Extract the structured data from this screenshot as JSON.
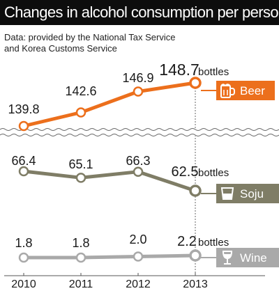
{
  "title": "Changes in alcohol consumption per person",
  "source_lines": [
    "Data: provided by the National Tax Service",
    "and Korea Customs Service"
  ],
  "unit_label": "bottles",
  "colors": {
    "beer": "#ec6f1c",
    "soju": "#7f7d66",
    "wine": "#a9a9a9",
    "axis": "#555555",
    "guide": "#666666",
    "title_bg": "#0d0d0d"
  },
  "chart_data": {
    "type": "line",
    "title": "Changes in alcohol consumption per person",
    "xlabel": "",
    "ylabel": "",
    "categories": [
      "2010",
      "2011",
      "2012",
      "2013"
    ],
    "unit": "bottles",
    "grid": false,
    "legend": "right (icon labels at end of each line)",
    "axis_break": true,
    "series": [
      {
        "name": "Beer",
        "values": [
          139.8,
          142.6,
          146.9,
          148.7
        ],
        "color": "#ec6f1c",
        "icon": "beer-mug-icon"
      },
      {
        "name": "Soju",
        "values": [
          66.4,
          65.1,
          66.3,
          62.5
        ],
        "color": "#7f7d66",
        "icon": "soju-glass-icon"
      },
      {
        "name": "Wine",
        "values": [
          1.8,
          1.8,
          2.0,
          2.2
        ],
        "color": "#a9a9a9",
        "icon": "wine-glass-icon"
      }
    ]
  }
}
